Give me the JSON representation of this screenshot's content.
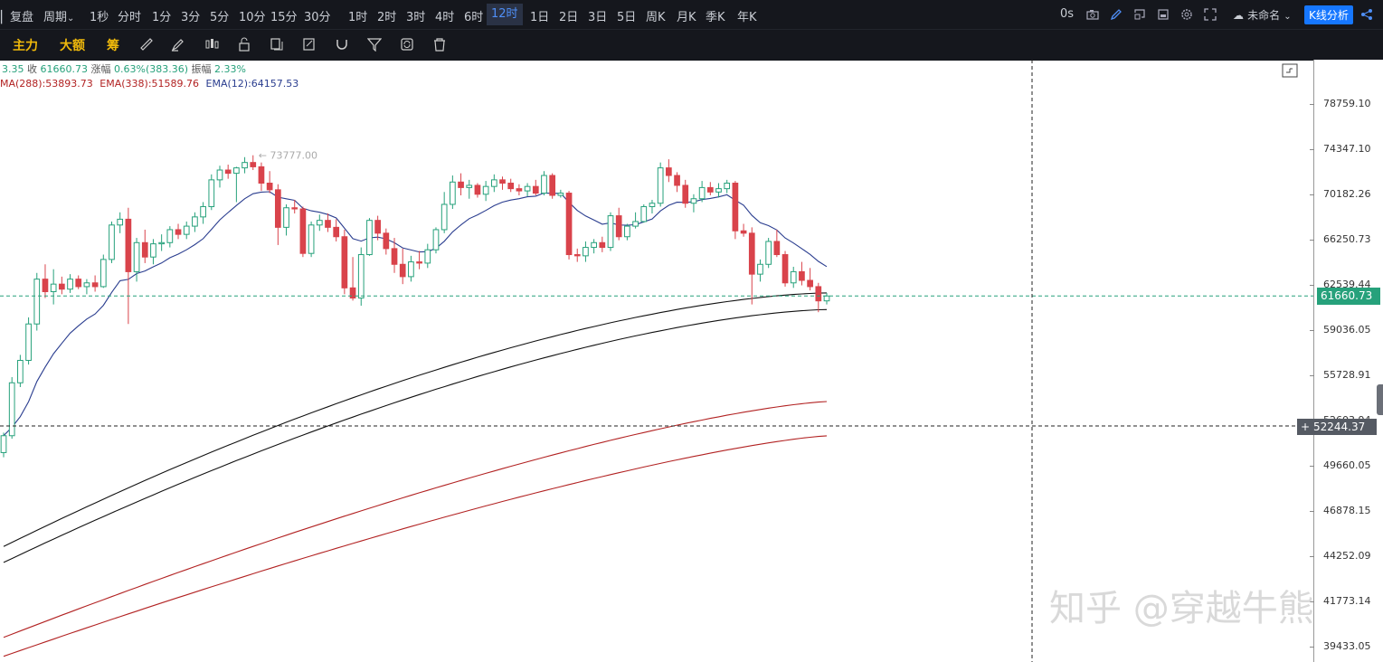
{
  "topbar": {
    "review": "复盘",
    "period": "周期",
    "intervals": [
      "1秒",
      "分时",
      "1分",
      "3分",
      "5分",
      "10分",
      "15分",
      "30分",
      "1时",
      "2时",
      "3时",
      "4时",
      "6时",
      "12时",
      "1日",
      "2日",
      "3日",
      "5日",
      "周K",
      "月K",
      "季K",
      "年K"
    ],
    "active_interval": "12时",
    "timer": "0s",
    "layout_name": "未命名",
    "kline_button": "K线分析"
  },
  "toolbar": {
    "indicators": [
      "主力",
      "大额",
      "筹"
    ]
  },
  "info": {
    "ohlc_prefix": "3.35",
    "close_label": "收",
    "close_value": "61660.73",
    "change_label": "涨幅",
    "change_value": "0.63%(383.36)",
    "amplitude_label": "振幅",
    "amplitude_value": "2.33%",
    "ema1": "MA(288):53893.73",
    "ema2": "EMA(338):51589.76",
    "ema3": "EMA(12):64157.53"
  },
  "chart_data": {
    "type": "candlestick",
    "y_ticks": [
      "78759.10",
      "74347.10",
      "70182.26",
      "66250.73",
      "62539.44",
      "59036.05",
      "55728.91",
      "52603.94",
      "49660.05",
      "46878.15",
      "44252.09",
      "41773.14",
      "39433.05"
    ],
    "ylim": [
      38900,
      80100
    ],
    "scale": "log",
    "last_price": "61660.73",
    "crosshair_price": "52244.37",
    "high_annotation": "73777.00",
    "candles": [
      [
        50500,
        51800,
        50200,
        51600
      ],
      [
        51600,
        55600,
        51400,
        55200
      ],
      [
        55200,
        57200,
        54900,
        56800
      ],
      [
        56800,
        60000,
        56500,
        59500
      ],
      [
        59500,
        63500,
        59000,
        63000
      ],
      [
        63000,
        64200,
        61500,
        62000
      ],
      [
        62000,
        63800,
        61000,
        62600
      ],
      [
        62600,
        63200,
        61800,
        62200
      ],
      [
        62200,
        63400,
        61900,
        63000
      ],
      [
        63000,
        63300,
        62200,
        62400
      ],
      [
        62400,
        63000,
        61800,
        62700
      ],
      [
        62700,
        63300,
        62000,
        62400
      ],
      [
        62400,
        65000,
        62300,
        64600
      ],
      [
        64600,
        67800,
        64300,
        67500
      ],
      [
        67500,
        68600,
        66800,
        68000
      ],
      [
        68000,
        69000,
        59500,
        63600
      ],
      [
        63600,
        66400,
        62800,
        66000
      ],
      [
        66000,
        67100,
        64300,
        64800
      ],
      [
        64800,
        66300,
        64200,
        65900
      ],
      [
        65900,
        66700,
        65300,
        66000
      ],
      [
        66000,
        67400,
        65600,
        67100
      ],
      [
        67100,
        67600,
        66300,
        66700
      ],
      [
        66700,
        67800,
        66300,
        67400
      ],
      [
        67400,
        68600,
        66900,
        68200
      ],
      [
        68200,
        69500,
        67600,
        69100
      ],
      [
        69100,
        72000,
        68800,
        71500
      ],
      [
        71500,
        72800,
        70800,
        72400
      ],
      [
        72400,
        72900,
        71600,
        72100
      ],
      [
        72100,
        72700,
        69500,
        72600
      ],
      [
        72600,
        73600,
        72100,
        73100
      ],
      [
        73100,
        73777,
        72400,
        72700
      ],
      [
        72700,
        73100,
        70500,
        71200
      ],
      [
        71200,
        72300,
        70300,
        70600
      ],
      [
        70600,
        71100,
        65800,
        67300
      ],
      [
        67300,
        69300,
        66600,
        69000
      ],
      [
        69000,
        69700,
        68500,
        68900
      ],
      [
        68900,
        69100,
        64800,
        65100
      ],
      [
        65100,
        67800,
        64800,
        67500
      ],
      [
        67500,
        68400,
        67000,
        67900
      ],
      [
        67900,
        68500,
        66900,
        67300
      ],
      [
        67300,
        68000,
        66100,
        66500
      ],
      [
        66500,
        67100,
        61800,
        62300
      ],
      [
        62300,
        64800,
        61300,
        61500
      ],
      [
        61500,
        65600,
        60900,
        65000
      ],
      [
        65000,
        68100,
        64900,
        67900
      ],
      [
        67900,
        68300,
        66200,
        66800
      ],
      [
        66800,
        67200,
        65000,
        65500
      ],
      [
        65500,
        66400,
        63500,
        64200
      ],
      [
        64200,
        65500,
        62600,
        63200
      ],
      [
        63200,
        64900,
        62800,
        64400
      ],
      [
        64400,
        65300,
        63800,
        64300
      ],
      [
        64300,
        65900,
        63900,
        65400
      ],
      [
        65400,
        67300,
        65100,
        67100
      ],
      [
        67100,
        70400,
        66800,
        69300
      ],
      [
        69300,
        71900,
        68900,
        71300
      ],
      [
        71300,
        72100,
        70100,
        70800
      ],
      [
        70800,
        71500,
        69800,
        71000
      ],
      [
        71000,
        71200,
        69900,
        70200
      ],
      [
        70200,
        71400,
        69600,
        70900
      ],
      [
        70900,
        72000,
        70400,
        71500
      ],
      [
        71500,
        71800,
        70600,
        71200
      ],
      [
        71200,
        71600,
        70400,
        70700
      ],
      [
        70700,
        71100,
        70100,
        70500
      ],
      [
        70500,
        71200,
        70000,
        70900
      ],
      [
        70900,
        71500,
        70100,
        70300
      ],
      [
        70300,
        72300,
        70100,
        71900
      ],
      [
        71900,
        72100,
        69800,
        70100
      ],
      [
        70100,
        70600,
        69900,
        70300
      ],
      [
        70300,
        70500,
        64600,
        65000
      ],
      [
        65000,
        65500,
        64400,
        64900
      ],
      [
        64900,
        66100,
        64400,
        65600
      ],
      [
        65600,
        66300,
        65100,
        66000
      ],
      [
        66000,
        66500,
        65200,
        65600
      ],
      [
        65600,
        68600,
        65300,
        68300
      ],
      [
        68300,
        69000,
        66200,
        66500
      ],
      [
        66500,
        67600,
        66200,
        67400
      ],
      [
        67400,
        68600,
        67200,
        67800
      ],
      [
        67800,
        69300,
        67700,
        69100
      ],
      [
        69100,
        69700,
        68500,
        69400
      ],
      [
        69400,
        73100,
        69100,
        72600
      ],
      [
        72600,
        73400,
        71300,
        71900
      ],
      [
        71900,
        72200,
        70400,
        71000
      ],
      [
        71000,
        71500,
        69000,
        69400
      ],
      [
        69400,
        70200,
        68600,
        69800
      ],
      [
        69800,
        71400,
        69500,
        70800
      ],
      [
        70800,
        71300,
        70100,
        70400
      ],
      [
        70400,
        71200,
        69900,
        70700
      ],
      [
        70700,
        71500,
        70300,
        71200
      ],
      [
        71200,
        71400,
        66300,
        67000
      ],
      [
        67000,
        67600,
        66500,
        66800
      ],
      [
        66800,
        67300,
        61000,
        63400
      ],
      [
        63400,
        64600,
        62800,
        64200
      ],
      [
        64200,
        66400,
        63900,
        66100
      ],
      [
        66100,
        67100,
        64800,
        65000
      ],
      [
        65000,
        65300,
        62400,
        62700
      ],
      [
        62700,
        64000,
        62300,
        63600
      ],
      [
        63600,
        64400,
        62500,
        62900
      ],
      [
        62900,
        63900,
        62100,
        62400
      ],
      [
        62400,
        62700,
        60400,
        61277
      ],
      [
        61277,
        61900,
        61000,
        61660
      ]
    ]
  }
}
